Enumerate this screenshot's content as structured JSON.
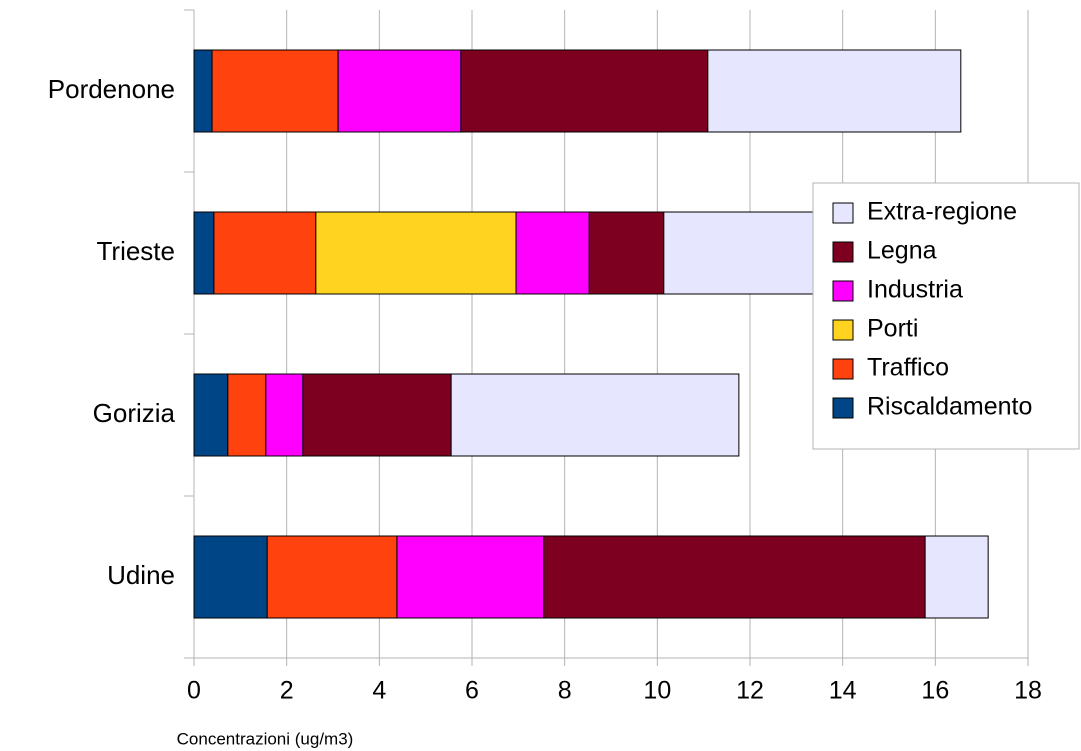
{
  "chart_data": {
    "type": "bar",
    "orientation": "horizontal",
    "stacked": true,
    "x_label": "Concentrazioni (ug/m3)",
    "categories": [
      "Pordenone",
      "Trieste",
      "Gorizia",
      "Udine"
    ],
    "series": [
      {
        "name": "Riscaldamento",
        "color": "#004586",
        "values": [
          0.39,
          0.43,
          0.73,
          1.58
        ]
      },
      {
        "name": "Traffico",
        "color": "#ff420e",
        "values": [
          2.72,
          2.2,
          0.82,
          2.8
        ]
      },
      {
        "name": "Porti",
        "color": "#ffd320",
        "values": [
          0,
          4.32,
          0,
          0
        ]
      },
      {
        "name": "Industria",
        "color": "#ff00ff",
        "values": [
          2.65,
          1.58,
          0.8,
          3.17
        ]
      },
      {
        "name": "Legna",
        "color": "#7e0021",
        "values": [
          5.33,
          1.61,
          3.2,
          8.23
        ]
      },
      {
        "name": "Extra-regione",
        "color": "#e6e6ff",
        "values": [
          5.46,
          6.8,
          6.21,
          1.36
        ]
      }
    ],
    "xlim": [
      0,
      18
    ],
    "xticks": [
      0,
      2,
      4,
      6,
      8,
      10,
      12,
      14,
      16,
      18
    ],
    "grid": true,
    "legend": "right"
  }
}
